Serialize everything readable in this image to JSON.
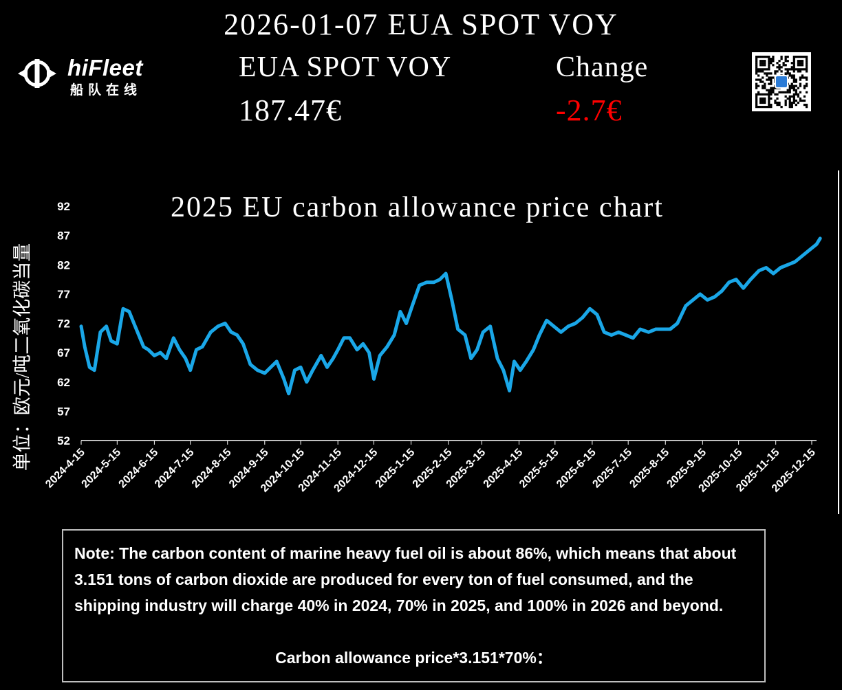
{
  "header": {
    "title": "2026-01-07 EUA SPOT VOY",
    "logo_text": "hiFleet",
    "logo_sub": "船队在线",
    "product_label": "EUA SPOT VOY",
    "price": "187.47€",
    "change_label": "Change",
    "change_value": "-2.7€",
    "change_color": "#ff0000"
  },
  "chart_data": {
    "type": "line",
    "title": "2025 EU carbon allowance price chart",
    "ylabel": "单位：欧元/吨二氧化碳当量",
    "xlabel": "",
    "ylim": [
      52,
      92
    ],
    "y_ticks": [
      "92",
      "87",
      "82",
      "77",
      "72",
      "67",
      "62",
      "57",
      "52"
    ],
    "x_ticks": [
      "2024-4-15",
      "2024-5-15",
      "2024-6-15",
      "2024-7-15",
      "2024-8-15",
      "2024-9-15",
      "2024-10-15",
      "2024-11-15",
      "2024-12-15",
      "2025-1-15",
      "2025-2-15",
      "2025-3-15",
      "2025-4-15",
      "2025-5-15",
      "2025-6-15",
      "2025-7-15",
      "2025-8-15",
      "2025-9-15",
      "2025-10-15",
      "2025-11-15",
      "2025-12-15"
    ],
    "line_color": "#1aa7e8",
    "series": [
      {
        "x": [
          "2024-4-15",
          "2024-4-18",
          "2024-4-22",
          "2024-4-26",
          "2024-5-1",
          "2024-5-6",
          "2024-5-10",
          "2024-5-15",
          "2024-5-20",
          "2024-5-25",
          "2024-5-29",
          "2024-6-2",
          "2024-6-6",
          "2024-6-10",
          "2024-6-15",
          "2024-6-20",
          "2024-6-25",
          "2024-7-1",
          "2024-7-6",
          "2024-7-11",
          "2024-7-15",
          "2024-7-20",
          "2024-7-25",
          "2024-8-1",
          "2024-8-7",
          "2024-8-13",
          "2024-8-18",
          "2024-8-23",
          "2024-8-28",
          "2024-9-3",
          "2024-9-9",
          "2024-9-15",
          "2024-9-20",
          "2024-9-25",
          "2024-10-1",
          "2024-10-5",
          "2024-10-10",
          "2024-10-15",
          "2024-10-20",
          "2024-10-25",
          "2024-11-1",
          "2024-11-6",
          "2024-11-11",
          "2024-11-15",
          "2024-11-20",
          "2024-11-25",
          "2024-12-1",
          "2024-12-6",
          "2024-12-11",
          "2024-12-15",
          "2024-12-20",
          "2024-12-26",
          "2025-1-1",
          "2025-1-6",
          "2025-1-11",
          "2025-1-16",
          "2025-1-22",
          "2025-1-28",
          "2025-2-3",
          "2025-2-8",
          "2025-2-13",
          "2025-2-18",
          "2025-2-23",
          "2025-3-1",
          "2025-3-6",
          "2025-3-11",
          "2025-3-16",
          "2025-3-22",
          "2025-3-28",
          "2025-4-2",
          "2025-4-7",
          "2025-4-11",
          "2025-4-16",
          "2025-4-21",
          "2025-4-27",
          "2025-5-2",
          "2025-5-8",
          "2025-5-14",
          "2025-5-20",
          "2025-5-26",
          "2025-6-1",
          "2025-6-7",
          "2025-6-13",
          "2025-6-19",
          "2025-6-25",
          "2025-7-1",
          "2025-7-7",
          "2025-7-13",
          "2025-7-19",
          "2025-7-25",
          "2025-8-1",
          "2025-8-7",
          "2025-8-13",
          "2025-8-19",
          "2025-8-25",
          "2025-9-1",
          "2025-9-7",
          "2025-9-13",
          "2025-9-19",
          "2025-9-25",
          "2025-10-1",
          "2025-10-7",
          "2025-10-13",
          "2025-10-19",
          "2025-10-25",
          "2025-11-1",
          "2025-11-7",
          "2025-11-13",
          "2025-11-19",
          "2025-11-25",
          "2025-12-1",
          "2025-12-7",
          "2025-12-13",
          "2025-12-19",
          "2025-12-22"
        ],
        "values": [
          71.5,
          68.0,
          64.5,
          64.0,
          70.5,
          71.5,
          69.0,
          68.5,
          74.5,
          74.0,
          72.0,
          70.0,
          68.0,
          67.5,
          66.5,
          67.0,
          66.0,
          69.5,
          67.5,
          66.0,
          64.0,
          67.5,
          68.0,
          70.5,
          71.5,
          72.0,
          70.5,
          70.0,
          68.5,
          65.0,
          64.0,
          63.5,
          64.5,
          65.5,
          62.5,
          60.0,
          64.0,
          64.5,
          62.0,
          64.0,
          66.5,
          64.5,
          66.0,
          67.5,
          69.5,
          69.5,
          67.5,
          68.5,
          67.0,
          62.5,
          66.5,
          68.0,
          70.0,
          74.0,
          72.0,
          75.0,
          78.5,
          79.0,
          79.0,
          79.5,
          80.5,
          76.0,
          71.0,
          70.0,
          66.0,
          67.5,
          70.5,
          71.5,
          66.0,
          64.0,
          60.5,
          65.5,
          64.0,
          65.5,
          67.5,
          70.0,
          72.5,
          71.5,
          70.5,
          71.5,
          72.0,
          73.0,
          74.5,
          73.5,
          70.5,
          70.0,
          70.5,
          70.0,
          69.5,
          71.0,
          70.5,
          71.0,
          71.0,
          71.0,
          72.0,
          75.0,
          76.0,
          77.0,
          76.0,
          76.5,
          77.5,
          79.0,
          79.5,
          78.0,
          79.5,
          81.0,
          81.5,
          80.5,
          81.5,
          82.0,
          82.5,
          83.5,
          84.5,
          85.5,
          86.5
        ]
      }
    ]
  },
  "note": {
    "text": "Note: The carbon content of marine heavy fuel oil is about 86%, which means that about 3.151 tons of carbon dioxide are produced for every ton of fuel consumed, and the shipping industry will charge 40% in 2024, 70% in 2025, and 100% in 2026 and beyond.",
    "formula": "Carbon allowance price*3.151*70%："
  }
}
